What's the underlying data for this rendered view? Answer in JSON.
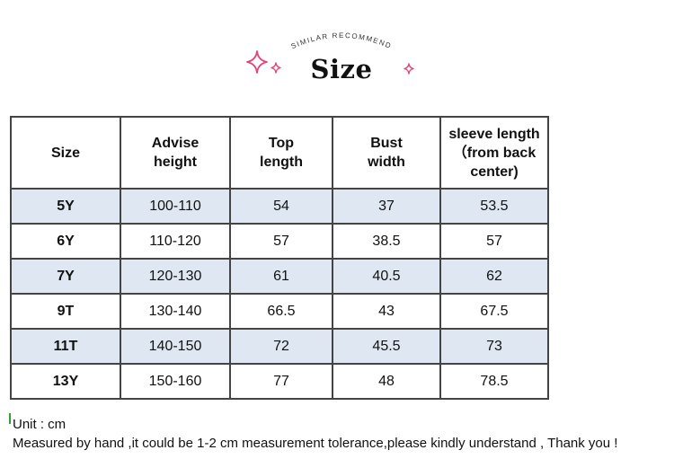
{
  "header": {
    "arc_text": "SIMILAR RECOMMEND",
    "title": "Size",
    "accent_color": "#e0457b"
  },
  "table": {
    "columns": [
      {
        "line1": "Size",
        "line2": "",
        "line3": ""
      },
      {
        "line1": "Advise",
        "line2": "height",
        "line3": ""
      },
      {
        "line1": "Top",
        "line2": "length",
        "line3": ""
      },
      {
        "line1": "Bust",
        "line2": "width",
        "line3": ""
      },
      {
        "line1": "sleeve length",
        "line2": "（from back",
        "line3": "center)"
      }
    ],
    "rows": [
      {
        "size": "5Y",
        "height": "100-110",
        "top": "54",
        "bust": "37",
        "sleeve": "53.5"
      },
      {
        "size": "6Y",
        "height": "110-120",
        "top": "57",
        "bust": "38.5",
        "sleeve": "57"
      },
      {
        "size": "7Y",
        "height": "120-130",
        "top": "61",
        "bust": "40.5",
        "sleeve": "62"
      },
      {
        "size": "9T",
        "height": "130-140",
        "top": "66.5",
        "bust": "43",
        "sleeve": "67.5"
      },
      {
        "size": "11T",
        "height": "140-150",
        "top": "72",
        "bust": "45.5",
        "sleeve": "73"
      },
      {
        "size": "13Y",
        "height": "150-160",
        "top": "77",
        "bust": "48",
        "sleeve": "78.5"
      }
    ],
    "shade_color": "#dfe8f2"
  },
  "footer": {
    "unit": "Unit : cm",
    "note": "Measured by hand ,it could be 1-2 cm measurement tolerance,please kindly understand , Thank you !"
  }
}
